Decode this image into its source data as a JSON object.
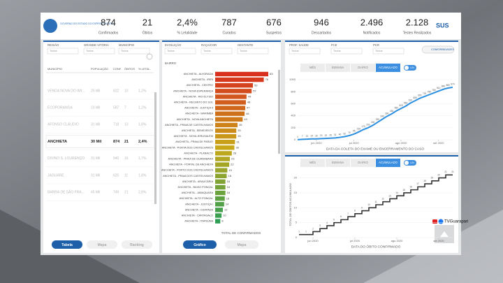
{
  "header": {
    "stats": [
      {
        "value": "874",
        "label": "Confirmados"
      },
      {
        "value": "21",
        "label": "Óbitos"
      },
      {
        "value": "2,4%",
        "label": "% Letalidade"
      },
      {
        "value": "787",
        "label": "Curados"
      },
      {
        "value": "676",
        "label": "Suspeitos"
      },
      {
        "value": "946",
        "label": "Descartados"
      },
      {
        "value": "2.496",
        "label": "Notificados"
      },
      {
        "value": "2.128",
        "label": "Testes Realizados"
      }
    ],
    "logo_text": "GOVERNO DO ESTADO DO ESPÍRITO SANTO",
    "sus": "SUS"
  },
  "left_panel": {
    "filters": [
      {
        "label": "REGIÃO",
        "value": "Todos"
      },
      {
        "label": "GRANDE VITÓRIA",
        "value": "Todos"
      },
      {
        "label": "MUNICÍPIO",
        "value": "Todos"
      }
    ],
    "table": {
      "columns": [
        "MUNICÍPIO",
        "POPULAÇÃO",
        "CONF.",
        "ÓBITOS",
        "% LETAL."
      ],
      "rows": [
        [
          "VENDA NOVA DO IMI...",
          "25 Mil",
          "822",
          "10",
          "1,2%"
        ],
        [
          "ECOPORANGA",
          "23 Mil",
          "587",
          "7",
          "1,2%"
        ],
        [
          "AFONSO CLÁUDIO",
          "31 Mil",
          "718",
          "13",
          "1,8%"
        ],
        [
          "ANCHIETA",
          "30 Mil",
          "874",
          "21",
          "2,4%"
        ],
        [
          "DIVINO S. LOURENÇO",
          "31 Mil",
          "940",
          "16",
          "1,7%"
        ],
        [
          "JAGUARÉ",
          "31 Mil",
          "625",
          "11",
          "1,8%"
        ],
        [
          "BARRA DE SÃO FRA...",
          "45 Mil",
          "749",
          "21",
          "2,8%"
        ]
      ],
      "selected": 3
    },
    "buttons": [
      "Tabela",
      "Mapa",
      "Ranking"
    ]
  },
  "middle_panel": {
    "filters": [
      {
        "label": "EVOLUÇÃO",
        "value": "Todos"
      },
      {
        "label": "RAÇA/COR",
        "value": "Todos"
      },
      {
        "label": "GESTANTE",
        "value": "Todos"
      }
    ],
    "chart": {
      "type": "hbar",
      "title": "BAIRRO",
      "x_label": "TOTAL DE CONFIRMADOS",
      "color_scale": [
        "#d7301f",
        "#c8a818",
        "#2f9e55"
      ],
      "categories": [
        "ANCHIETA - ALVORADA",
        "ANCHIETA - IRIRI",
        "ANCHIETA - CENTRO",
        "ANCHIETA - NOVA ESPERANÇA",
        "ANCHIETA - RIO ÉLYSIO",
        "ANCHIETA - RECANTO DO SOL",
        "ANCHIETA - JUSTIÇA II",
        "ANCHIETA - MARIMBÁ",
        "ANCHIETA - NOVA ANCHIETA",
        "ANCHIETA - PRAIA DE CASTELHANOS",
        "ANCHIETA - BENEVENTE",
        "ANCHIETA - NOVA JERUSALÉM",
        "ANCHIETA - PRAIA DE PARATI",
        "ANCHIETA - PONTA DOS CASTELHANOS",
        "ANCHIETA - PLANALTO",
        "ANCHIETA - PRAIA DE GUANABARA",
        "ANCHIETA - PORTAL DE ANCHIETA",
        "ANCHIETA - PORTO DOS CASTELHANOS",
        "ANCHIETA - PRAIA DOS CASTELHANOS",
        "ANCHIETA - ARAUCÁRIA",
        "ANCHIETA - BAIXO PONGAL",
        "ANCHIETA - JABAQUARA",
        "ANCHIETA - ALTO PONGAL",
        "ANCHIETA - JUSTIÇA I",
        "ANCHIETA - CHAPADA",
        "ANCHIETA - CANTAGALO",
        "ANCHIETA - ITAPEÚNA"
      ],
      "values": [
        83,
        76,
        59,
        57,
        49,
        48,
        47,
        46,
        43,
        35,
        33,
        33,
        31,
        30,
        26,
        23,
        22,
        19,
        18,
        16,
        16,
        16,
        15,
        14,
        12,
        10,
        8
      ]
    },
    "buttons": [
      "Gráfico",
      "Mapa"
    ]
  },
  "right_top": {
    "filters": [
      {
        "label": "PROF. SAÚDE",
        "value": "Todos"
      },
      {
        "label": "FCE",
        "value": "Todos"
      },
      {
        "label": "PCR",
        "value": "Todos"
      }
    ],
    "comorbidades": "COMORBIDADES",
    "tabs": [
      "MÊS",
      "SEMANA",
      "DIÁRIO",
      "ACUMULADO"
    ],
    "active_tab": 3,
    "toggle": "LIN",
    "chart": {
      "type": "line",
      "color": "#2a8fe0",
      "x_label": "DATA DA COLETA DO EXAME OU ENCERRAMENTO DO CASO",
      "values": [
        1,
        7,
        10,
        14,
        15,
        19,
        22,
        26,
        31,
        40,
        52,
        70,
        95,
        130,
        170,
        200,
        240,
        290,
        340,
        390,
        430,
        480,
        520,
        560,
        610,
        650,
        690,
        720,
        750,
        780,
        810,
        840,
        860,
        874
      ],
      "ylim": [
        0,
        1000
      ],
      "yticks": [
        0,
        200,
        400,
        600,
        800,
        1000
      ],
      "xlim": [
        0,
        33
      ],
      "xticks": [
        {
          "value": 4,
          "label": "jun 2020"
        },
        {
          "value": 12,
          "label": "jul 2020"
        },
        {
          "value": 22,
          "label": "ago 2020"
        },
        {
          "value": 30,
          "label": "set 2020"
        }
      ]
    }
  },
  "right_bottom": {
    "tabs": [
      "MÊS",
      "SEMANA",
      "DIÁRIO",
      "ACUMULADO"
    ],
    "active_tab": 3,
    "toggle": "LIN",
    "chart": {
      "type": "step",
      "color": "#333333",
      "x_label": "DATA DO ÓBITO CONFIRMADO",
      "y_label": "TOTAL DE ÓBITOS ACUMULADO",
      "values": [
        1,
        1,
        2,
        3,
        4,
        5,
        6,
        7,
        8,
        9,
        10,
        11,
        12,
        13,
        14,
        15,
        16,
        17,
        18,
        19,
        20,
        21,
        21
      ],
      "ylim": [
        0,
        22
      ],
      "yticks": [
        0,
        5,
        10,
        15,
        20
      ],
      "xlim": [
        0,
        22
      ],
      "xticks": [
        {
          "value": 2,
          "label": "jun 2020"
        },
        {
          "value": 8,
          "label": "jul 2020"
        },
        {
          "value": 14,
          "label": "ago 2020"
        },
        {
          "value": 20,
          "label": "set 2020"
        }
      ]
    }
  },
  "watermark": "TVGuarapari"
}
